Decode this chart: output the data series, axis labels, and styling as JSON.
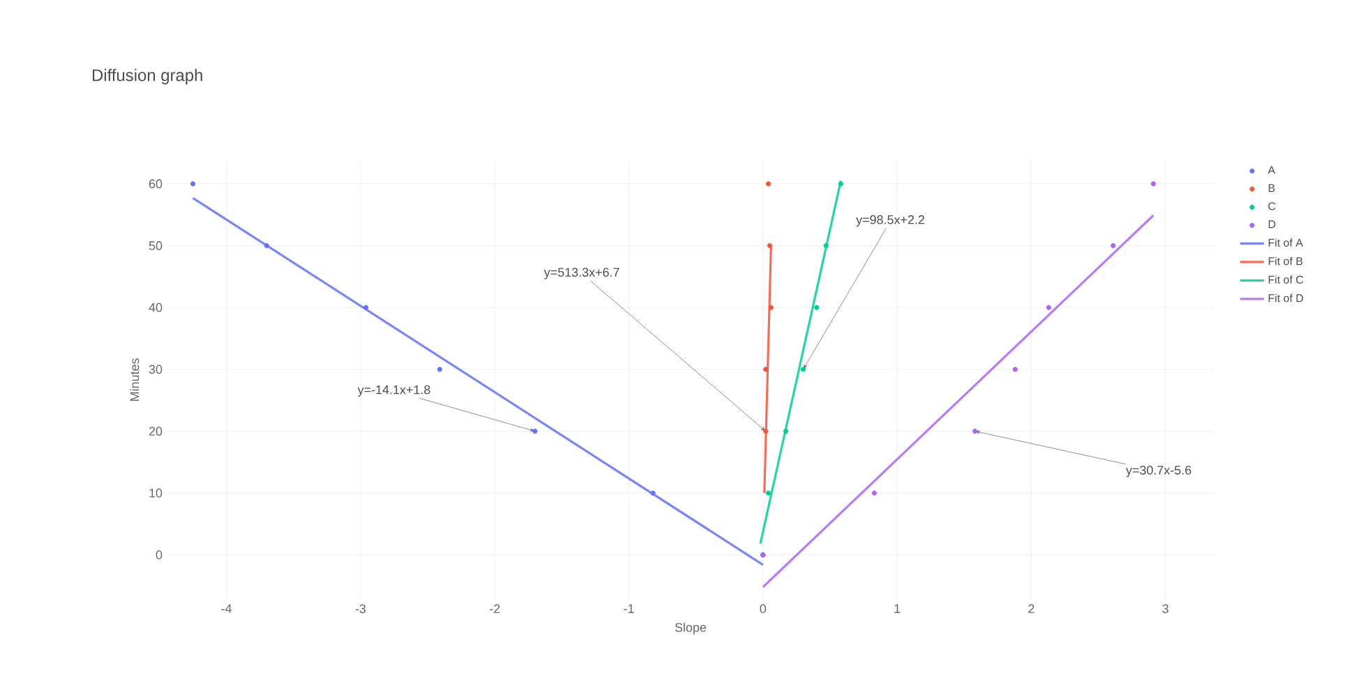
{
  "chart_data": {
    "type": "scatter",
    "title": "Diffusion graph",
    "xlabel": "Slope",
    "ylabel": "Minutes",
    "xlim": [
      -4.44,
      3.36
    ],
    "ylim": [
      -7.2,
      63.8
    ],
    "xticks": [
      -4,
      -3,
      -2,
      -1,
      0,
      1,
      2,
      3
    ],
    "yticks": [
      0,
      10,
      20,
      30,
      40,
      50,
      60
    ],
    "grid": true,
    "legend": "top right",
    "series": [
      {
        "name": "A",
        "marker": "circle",
        "color": "#636efa",
        "x": [
          -4.25,
          -3.7,
          -2.96,
          -2.41,
          -1.7,
          -0.82,
          0
        ],
        "values": [
          60,
          50,
          40,
          30,
          20,
          10,
          0
        ]
      },
      {
        "name": "B",
        "marker": "circle",
        "color": "#ef553b",
        "x": [
          0.04,
          0.05,
          0.06,
          0.02,
          0.02,
          0
        ],
        "values": [
          60,
          50,
          40,
          30,
          20,
          0
        ]
      },
      {
        "name": "C",
        "marker": "circle",
        "color": "#00cc96",
        "x": [
          0.58,
          0.47,
          0.4,
          0.3,
          0.17,
          0.04,
          0
        ],
        "values": [
          60,
          50,
          40,
          30,
          20,
          10,
          0
        ]
      },
      {
        "name": "D",
        "marker": "circle",
        "color": "#ab63fa",
        "x": [
          2.91,
          2.61,
          2.13,
          1.88,
          1.58,
          0.83,
          0
        ],
        "values": [
          60,
          50,
          40,
          30,
          20,
          10,
          0
        ]
      },
      {
        "name": "Fit of A",
        "type": "line",
        "marker": "none",
        "color": "#636efa",
        "x": [
          -4.25,
          0
        ],
        "values": [
          57.7,
          -1.6
        ]
      },
      {
        "name": "Fit of B",
        "type": "line",
        "marker": "none",
        "color": "#ef553b",
        "x": [
          0.01,
          0.06
        ],
        "values": [
          10,
          50
        ]
      },
      {
        "name": "Fit of C",
        "type": "line",
        "marker": "none",
        "color": "#00cc96",
        "x": [
          -0.02,
          0.58
        ],
        "values": [
          1.8,
          60.5
        ]
      },
      {
        "name": "Fit of D",
        "type": "line",
        "marker": "none",
        "color": "#ab63fa",
        "x": [
          0,
          2.91
        ],
        "values": [
          -5.2,
          54.9
        ]
      }
    ],
    "annotations": [
      {
        "text": "y=-14.1x+1.8",
        "x": -1.7,
        "y": 20
      },
      {
        "text": "y=513.3x+6.7",
        "x": 0.02,
        "y": 20
      },
      {
        "text": "y=98.5x+2.2",
        "x": 0.3,
        "y": 30
      },
      {
        "text": "y=30.7x-5.6",
        "x": 1.58,
        "y": 20
      }
    ]
  }
}
